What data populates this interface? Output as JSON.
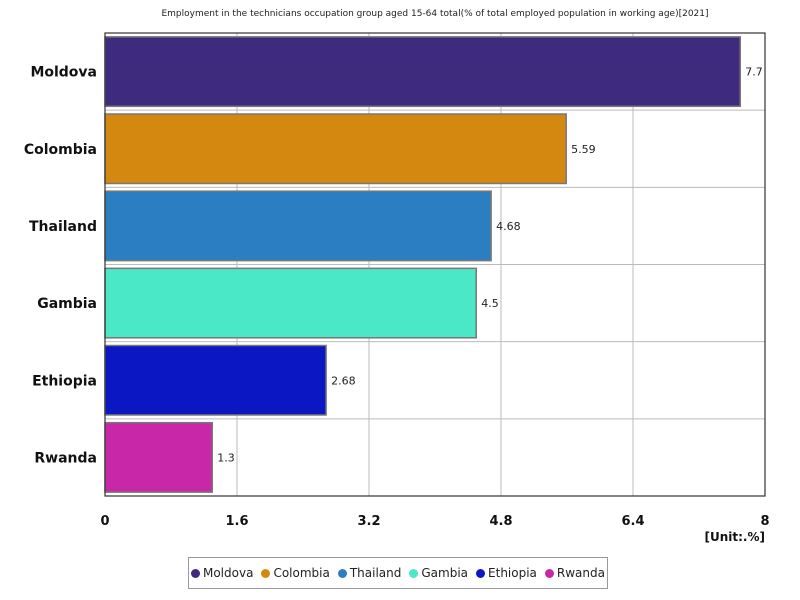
{
  "chart_data": {
    "type": "bar",
    "orientation": "horizontal",
    "title": "Employment in the technicians occupation group aged 15-64 total(% of total employed population in working age)[2021]",
    "categories": [
      "Moldova",
      "Colombia",
      "Thailand",
      "Gambia",
      "Ethiopia",
      "Rwanda"
    ],
    "values": [
      7.7,
      5.59,
      4.68,
      4.5,
      2.68,
      1.3
    ],
    "value_labels": [
      "7.7",
      "5.59",
      "4.68",
      "4.5",
      "2.68",
      "1.3"
    ],
    "colors": [
      "#3f2b7e",
      "#d4880f",
      "#2b7ec1",
      "#4be8c8",
      "#0b17c2",
      "#c828a8"
    ],
    "xlim": [
      0,
      8
    ],
    "xticks": [
      "0",
      "1.6",
      "3.2",
      "4.8",
      "6.4",
      "8"
    ],
    "xtick_values": [
      0,
      1.6,
      3.2,
      4.8,
      6.4,
      8
    ],
    "unit": "[Unit:.%]",
    "grid": true,
    "legend_position": "bottom"
  }
}
